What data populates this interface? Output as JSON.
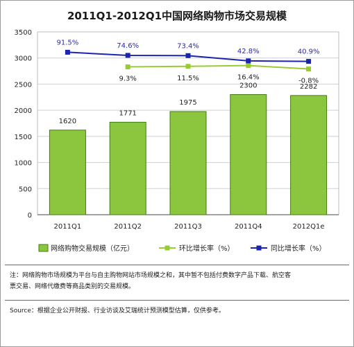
{
  "chart_data": {
    "type": "bar",
    "title": "2011Q1-2012Q1中国网络购物市场交易规模",
    "categories": [
      "2011Q1",
      "2011Q2",
      "2011Q3",
      "2011Q4",
      "2012Q1e"
    ],
    "y_ticks": [
      "0",
      "500",
      "1000",
      "1500",
      "2000",
      "2500",
      "3000",
      "3500"
    ],
    "ylim": [
      0,
      3500
    ],
    "grid": true,
    "legend_position": "bottom",
    "series": [
      {
        "name": "网络购物交易规模（亿元）",
        "type": "bar",
        "color": "#8cc63f",
        "values": [
          1620,
          1771,
          1975,
          2300,
          2282
        ],
        "labels": [
          "1620",
          "1771",
          "1975",
          "2300",
          "2282"
        ]
      },
      {
        "name": "环比增长率（%）",
        "type": "line",
        "color": "#99cc33",
        "values": [
          null,
          2830,
          2840,
          2855,
          2790
        ],
        "labels": [
          "",
          "9.3%",
          "11.5%",
          "16.4%",
          "-0.8%"
        ]
      },
      {
        "name": "同比增长率（%）",
        "type": "line",
        "color": "#1a24b0",
        "values": [
          3110,
          3050,
          3045,
          2945,
          2935
        ],
        "labels": [
          "91.5%",
          "74.6%",
          "73.4%",
          "42.8%",
          "40.9%"
        ]
      }
    ]
  },
  "notes": {
    "note_line1": "注：网络购物市场规模为平台与自主购物网站市场规模之和，其中暂不包括付费数字产品下载、航空客",
    "note_line2": "票交易、网络代缴费等商品类别的交易规模。",
    "source": "Source：根据企业公开财报、行业访谈及艾瑞统计预测模型估算，仅供参考。"
  }
}
